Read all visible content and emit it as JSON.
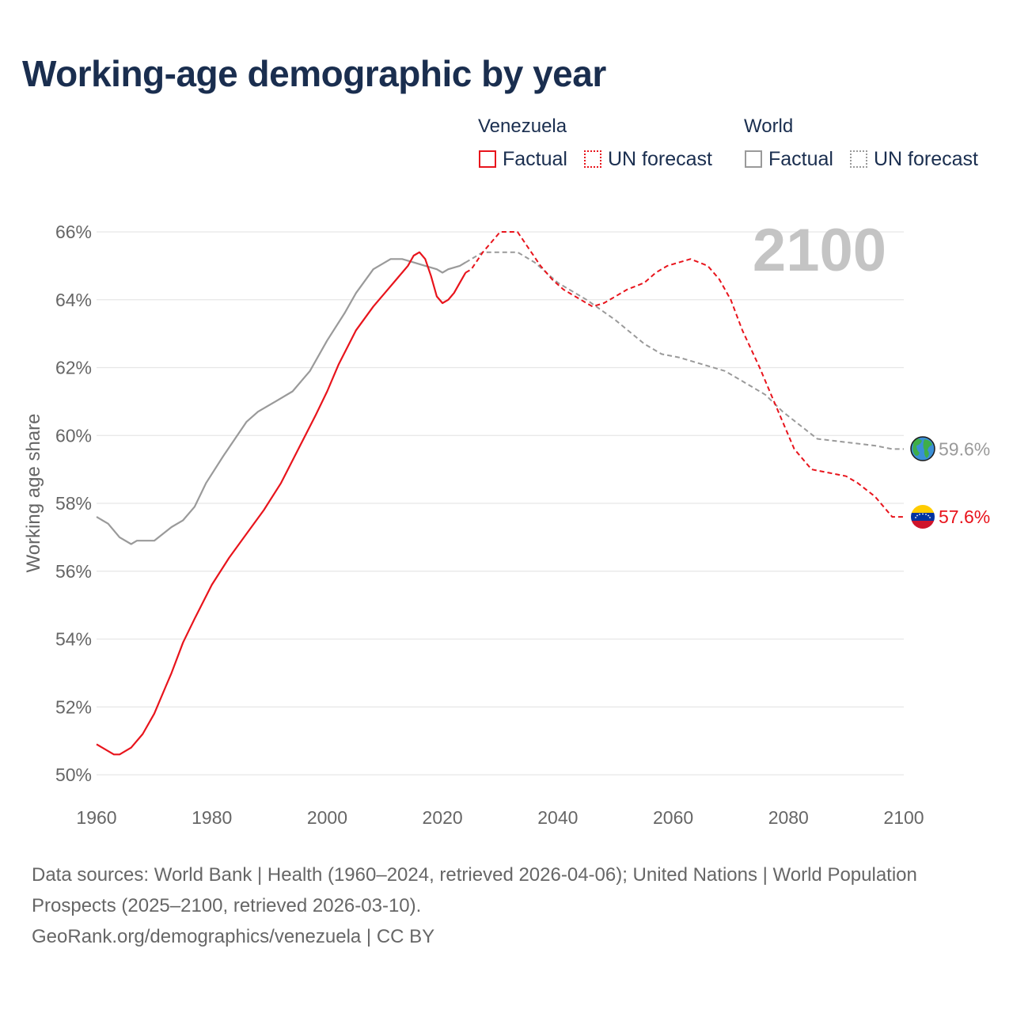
{
  "title": "Working-age demographic by year",
  "legend": {
    "venezuela_header": "Venezuela",
    "world_header": "World",
    "venezuela_factual": "Factual",
    "venezuela_forecast": "UN forecast",
    "world_factual": "Factual",
    "world_forecast": "UN forecast"
  },
  "footer": {
    "sources": "Data sources: World Bank | Health (1960–2024, retrieved 2026-04-06); United Nations | World Population Prospects (2025–2100, retrieved 2026-03-10).",
    "credit": "GeoRank.org/demographics/venezuela | CC BY"
  },
  "colors": {
    "venezuela": "#e8141c",
    "world": "#9a9a9a",
    "title": "#1a2e4f",
    "grid": "#e6e6e6",
    "year_label": "#c4c4c4"
  },
  "chart_data": {
    "type": "line",
    "title": "Working-age demographic by year",
    "ylabel": "Working age share",
    "xlabel": "",
    "xlim": [
      1960,
      2100
    ],
    "ylim": [
      50,
      66
    ],
    "x_ticks": [
      1960,
      1980,
      2000,
      2020,
      2040,
      2060,
      2080,
      2100
    ],
    "y_ticks": [
      50,
      52,
      54,
      56,
      58,
      60,
      62,
      64,
      66
    ],
    "y_tick_labels": [
      "50%",
      "52%",
      "54%",
      "56%",
      "58%",
      "60%",
      "62%",
      "64%",
      "66%"
    ],
    "x_tick_labels": [
      "1960",
      "1980",
      "2000",
      "2020",
      "2040",
      "2060",
      "2080",
      "2100"
    ],
    "current_year_label": "2100",
    "factual_range": [
      1960,
      2024
    ],
    "forecast_range": [
      2025,
      2100
    ],
    "series": [
      {
        "name": "Venezuela",
        "color": "#e8141c",
        "end_label": "57.6%",
        "icon": "venezuela-flag-icon",
        "factual": [
          [
            1960,
            50.9
          ],
          [
            1963,
            50.6
          ],
          [
            1964,
            50.6
          ],
          [
            1966,
            50.8
          ],
          [
            1968,
            51.2
          ],
          [
            1970,
            51.8
          ],
          [
            1972,
            52.6
          ],
          [
            1973,
            53.0
          ],
          [
            1975,
            53.9
          ],
          [
            1977,
            54.6
          ],
          [
            1980,
            55.6
          ],
          [
            1983,
            56.4
          ],
          [
            1986,
            57.1
          ],
          [
            1989,
            57.8
          ],
          [
            1992,
            58.6
          ],
          [
            1995,
            59.6
          ],
          [
            1998,
            60.6
          ],
          [
            2000,
            61.3
          ],
          [
            2002,
            62.1
          ],
          [
            2005,
            63.1
          ],
          [
            2008,
            63.8
          ],
          [
            2010,
            64.2
          ],
          [
            2012,
            64.6
          ],
          [
            2014,
            65.0
          ],
          [
            2015,
            65.3
          ],
          [
            2016,
            65.4
          ],
          [
            2017,
            65.2
          ],
          [
            2018,
            64.7
          ],
          [
            2019,
            64.1
          ],
          [
            2020,
            63.9
          ],
          [
            2021,
            64.0
          ],
          [
            2022,
            64.2
          ],
          [
            2023,
            64.5
          ],
          [
            2024,
            64.8
          ]
        ],
        "forecast": [
          [
            2025,
            64.9
          ],
          [
            2027,
            65.4
          ],
          [
            2029,
            65.8
          ],
          [
            2030,
            66.0
          ],
          [
            2033,
            66.0
          ],
          [
            2035,
            65.5
          ],
          [
            2037,
            65.0
          ],
          [
            2039,
            64.6
          ],
          [
            2041,
            64.3
          ],
          [
            2044,
            64.0
          ],
          [
            2046,
            63.8
          ],
          [
            2048,
            63.9
          ],
          [
            2050,
            64.1
          ],
          [
            2052,
            64.3
          ],
          [
            2055,
            64.5
          ],
          [
            2057,
            64.8
          ],
          [
            2059,
            65.0
          ],
          [
            2061,
            65.1
          ],
          [
            2063,
            65.2
          ],
          [
            2066,
            65.0
          ],
          [
            2068,
            64.6
          ],
          [
            2070,
            64.0
          ],
          [
            2072,
            63.1
          ],
          [
            2075,
            62.0
          ],
          [
            2077,
            61.2
          ],
          [
            2079,
            60.4
          ],
          [
            2081,
            59.6
          ],
          [
            2084,
            59.0
          ],
          [
            2087,
            58.9
          ],
          [
            2090,
            58.8
          ],
          [
            2092,
            58.6
          ],
          [
            2095,
            58.2
          ],
          [
            2098,
            57.6
          ],
          [
            2100,
            57.6
          ]
        ]
      },
      {
        "name": "World",
        "color": "#9a9a9a",
        "end_label": "59.6%",
        "icon": "globe-icon",
        "factual": [
          [
            1960,
            57.6
          ],
          [
            1962,
            57.4
          ],
          [
            1964,
            57.0
          ],
          [
            1966,
            56.8
          ],
          [
            1967,
            56.9
          ],
          [
            1970,
            56.9
          ],
          [
            1973,
            57.3
          ],
          [
            1975,
            57.5
          ],
          [
            1977,
            57.9
          ],
          [
            1979,
            58.6
          ],
          [
            1982,
            59.4
          ],
          [
            1984,
            59.9
          ],
          [
            1986,
            60.4
          ],
          [
            1988,
            60.7
          ],
          [
            1991,
            61.0
          ],
          [
            1994,
            61.3
          ],
          [
            1997,
            61.9
          ],
          [
            2000,
            62.8
          ],
          [
            2003,
            63.6
          ],
          [
            2005,
            64.2
          ],
          [
            2008,
            64.9
          ],
          [
            2011,
            65.2
          ],
          [
            2013,
            65.2
          ],
          [
            2015,
            65.1
          ],
          [
            2017,
            65.0
          ],
          [
            2019,
            64.9
          ],
          [
            2020,
            64.8
          ],
          [
            2021,
            64.9
          ],
          [
            2023,
            65.0
          ],
          [
            2024,
            65.1
          ]
        ],
        "forecast": [
          [
            2025,
            65.2
          ],
          [
            2027,
            65.4
          ],
          [
            2030,
            65.4
          ],
          [
            2033,
            65.4
          ],
          [
            2036,
            65.1
          ],
          [
            2040,
            64.5
          ],
          [
            2045,
            64.0
          ],
          [
            2050,
            63.4
          ],
          [
            2055,
            62.7
          ],
          [
            2058,
            62.4
          ],
          [
            2061,
            62.3
          ],
          [
            2065,
            62.1
          ],
          [
            2069,
            61.9
          ],
          [
            2073,
            61.5
          ],
          [
            2076,
            61.2
          ],
          [
            2079,
            60.7
          ],
          [
            2082,
            60.3
          ],
          [
            2085,
            59.9
          ],
          [
            2090,
            59.8
          ],
          [
            2095,
            59.7
          ],
          [
            2098,
            59.6
          ],
          [
            2100,
            59.6
          ]
        ]
      }
    ]
  }
}
